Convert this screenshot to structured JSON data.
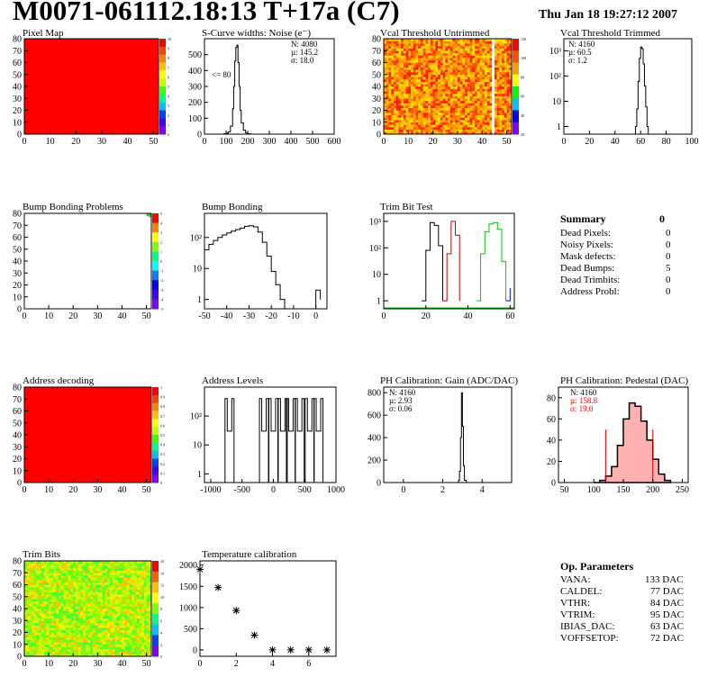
{
  "header": {
    "title": "M0071-061112.18:13 T+17a (C7)",
    "date": "Thu Jan 18 19:27:12 2007"
  },
  "panels": {
    "pixel_map": {
      "title": "Pixel Map",
      "palette_ticks": [
        "10",
        "9",
        "8",
        "7",
        "6",
        "5",
        "4",
        "3",
        "2",
        "1",
        "0"
      ]
    },
    "scurve": {
      "title": "S-Curve widths: Noise (e⁻)",
      "stats": [
        "N: 4080",
        "µ: 145.2",
        "σ: 18.0"
      ],
      "annotation": "<= 80"
    },
    "vcal_untrimmed": {
      "title": "Vcal Threshold Untrimmed",
      "palette_ticks": [
        "120",
        "100",
        "80",
        "60",
        "40",
        "20"
      ]
    },
    "vcal_trimmed": {
      "title": "Vcal Threshold Trimmed",
      "stats": [
        "N: 4160",
        "µ: 60.5",
        "σ:  1.2"
      ]
    },
    "bump_problems": {
      "title": "Bump Bonding Problems",
      "palette_ticks": [
        "5",
        "4",
        "3",
        "2",
        "1",
        "0",
        "-1",
        "-2",
        "-3",
        "-4",
        "-5"
      ]
    },
    "bump_bonding": {
      "title": "Bump Bonding"
    },
    "trim_bit_test": {
      "title": "Trim Bit Test"
    },
    "address_decoding": {
      "title": "Address decoding",
      "palette_ticks": [
        "1",
        "0.9",
        "0.8",
        "0.7",
        "0.6",
        "0.5",
        "0.4",
        "0.3",
        "0.2",
        "0.1",
        "0"
      ]
    },
    "address_levels": {
      "title": "Address Levels"
    },
    "ph_gain": {
      "title": "PH Calibration: Gain (ADC/DAC)",
      "stats": [
        "N: 4160",
        "µ: 2.93",
        "σ: 0.06"
      ]
    },
    "ph_pedestal": {
      "title": "PH Calibration: Pedestal (DAC)",
      "stats": [
        "N: 4160",
        "µ: 158.8",
        "σ: 19.0"
      ],
      "stat_colors": [
        "#000000",
        "#ff0000",
        "#ff0000"
      ]
    },
    "trim_bits": {
      "title": "Trim Bits",
      "palette_ticks": [
        "16",
        "14",
        "12",
        "10",
        "8",
        "6",
        "4",
        "2",
        "0"
      ]
    },
    "temperature": {
      "title": "Temperature calibration"
    }
  },
  "summary": {
    "title": "Summary",
    "total": "0",
    "rows": [
      {
        "label": "Dead Pixels:",
        "value": "0"
      },
      {
        "label": "Noisy Pixels:",
        "value": "0"
      },
      {
        "label": "Mask defects:",
        "value": "0"
      },
      {
        "label": "Dead Bumps:",
        "value": "5"
      },
      {
        "label": "Dead Trimbits:",
        "value": "0"
      },
      {
        "label": "Address Probl:",
        "value": "0"
      }
    ]
  },
  "op_params": {
    "title": "Op. Parameters",
    "rows": [
      {
        "label": "VANA:",
        "value": "133 DAC"
      },
      {
        "label": "CALDEL:",
        "value": "77 DAC"
      },
      {
        "label": "VTHR:",
        "value": "84 DAC"
      },
      {
        "label": "VTRIM:",
        "value": "95 DAC"
      },
      {
        "label": "IBIAS_DAC:",
        "value": "63 DAC"
      },
      {
        "label": "VOFFSETOP:",
        "value": "72 DAC"
      }
    ]
  },
  "chart_data": [
    {
      "id": "pixel_map",
      "type": "heatmap",
      "title": "Pixel Map",
      "x_ticks": [
        0,
        10,
        20,
        30,
        40,
        50
      ],
      "y_ticks": [
        0,
        10,
        20,
        30,
        40,
        50,
        60,
        70,
        80
      ],
      "xlim": [
        0,
        52
      ],
      "ylim": [
        0,
        80
      ],
      "fill": "uniform red",
      "colors": {
        "fill": "#ff0000"
      }
    },
    {
      "id": "scurve",
      "type": "line",
      "title": "S-Curve widths: Noise (e⁻)",
      "x_ticks": [
        0,
        100,
        200,
        300,
        400,
        500,
        600
      ],
      "y_ticks": [
        0,
        100,
        200,
        300,
        400,
        500
      ],
      "xlim": [
        0,
        600
      ],
      "ylim": [
        0,
        600
      ],
      "x": [
        80,
        90,
        100,
        110,
        120,
        130,
        135,
        140,
        145,
        150,
        155,
        160,
        165,
        170,
        180,
        190,
        200,
        210,
        220
      ],
      "y": [
        0,
        2,
        6,
        15,
        50,
        160,
        300,
        460,
        545,
        560,
        450,
        300,
        150,
        70,
        25,
        8,
        3,
        1,
        0
      ]
    },
    {
      "id": "vcal_untrimmed",
      "type": "heatmap",
      "title": "Vcal Threshold Untrimmed",
      "x_ticks": [
        0,
        10,
        20,
        30,
        40,
        50
      ],
      "y_ticks": [
        0,
        10,
        20,
        30,
        40,
        50,
        60,
        70,
        80
      ],
      "xlim": [
        0,
        52
      ],
      "ylim": [
        0,
        80
      ],
      "value_range": [
        20,
        120
      ],
      "white_column": 44
    },
    {
      "id": "vcal_trimmed",
      "type": "line",
      "title": "Vcal Threshold Trimmed",
      "y_scale": "log",
      "x_ticks": [
        0,
        20,
        40,
        60,
        80,
        100
      ],
      "y_tick_labels": [
        "1",
        "10",
        "10²",
        "10³"
      ],
      "xlim": [
        0,
        100
      ],
      "ylim": [
        0.5,
        3000
      ],
      "x": [
        55,
        56,
        57,
        58,
        59,
        60,
        61,
        62,
        63,
        64,
        65,
        66
      ],
      "y": [
        0.5,
        1,
        5,
        60,
        500,
        1400,
        1200,
        300,
        40,
        6,
        1,
        0.5
      ]
    },
    {
      "id": "bump_problems",
      "type": "heatmap",
      "title": "Bump Bonding Problems",
      "x_ticks": [
        0,
        10,
        20,
        30,
        40,
        50
      ],
      "y_ticks": [
        0,
        10,
        20,
        30,
        40,
        50,
        60,
        70,
        80
      ],
      "xlim": [
        0,
        52
      ],
      "ylim": [
        0,
        80
      ],
      "marked_pixels": [
        [
          51,
          79
        ],
        [
          51,
          78
        ],
        [
          50,
          79
        ],
        [
          50,
          78
        ],
        [
          51,
          77
        ]
      ]
    },
    {
      "id": "bump_bonding",
      "type": "line",
      "title": "Bump Bonding",
      "y_scale": "log",
      "x_ticks": [
        -50,
        -40,
        -30,
        -20,
        -10,
        0
      ],
      "y_tick_labels": [
        "1",
        "10",
        "10²"
      ],
      "xlim": [
        -50,
        5
      ],
      "ylim": [
        0.5,
        600
      ],
      "x": [
        -50,
        -48,
        -46,
        -44,
        -42,
        -40,
        -38,
        -36,
        -34,
        -32,
        -30,
        -28,
        -26,
        -24,
        -22,
        -20,
        -18,
        -16,
        -14,
        -2,
        0,
        2
      ],
      "y": [
        40,
        60,
        80,
        100,
        120,
        140,
        160,
        180,
        200,
        230,
        240,
        220,
        150,
        70,
        25,
        8,
        3,
        1,
        0.5,
        0.5,
        2,
        1
      ]
    },
    {
      "id": "trim_bit_test",
      "type": "line",
      "title": "Trim Bit Test",
      "y_scale": "log",
      "x_ticks": [
        0,
        20,
        40,
        60
      ],
      "y_tick_labels": [
        "1",
        "10",
        "10²",
        "10³"
      ],
      "xlim": [
        0,
        62
      ],
      "ylim": [
        0.5,
        2000
      ],
      "series": [
        {
          "color": "#000000",
          "x": [
            18,
            20,
            22,
            24,
            26,
            28
          ],
          "y": [
            1,
            80,
            900,
            700,
            120,
            1
          ]
        },
        {
          "color": "#cc0000",
          "x": [
            28,
            30,
            32,
            34,
            36
          ],
          "y": [
            1,
            60,
            1000,
            300,
            1
          ]
        },
        {
          "color": "#00cc00",
          "x": [
            44,
            46,
            48,
            50,
            52,
            54,
            56,
            58
          ],
          "y": [
            1,
            60,
            400,
            800,
            900,
            500,
            30,
            1
          ]
        },
        {
          "color": "#0000cc",
          "x": [
            58,
            60
          ],
          "y": [
            1,
            3
          ]
        }
      ]
    },
    {
      "id": "address_decoding",
      "type": "heatmap",
      "title": "Address decoding",
      "x_ticks": [
        0,
        10,
        20,
        30,
        40,
        50
      ],
      "y_ticks": [
        0,
        10,
        20,
        30,
        40,
        50,
        60,
        70,
        80
      ],
      "xlim": [
        0,
        52
      ],
      "ylim": [
        0,
        80
      ],
      "fill": "uniform red"
    },
    {
      "id": "address_levels",
      "type": "bar",
      "title": "Address Levels",
      "y_scale": "log",
      "x_ticks": [
        -1000,
        -500,
        0,
        500,
        1000
      ],
      "y_tick_labels": [
        "1",
        "10",
        "10²"
      ],
      "xlim": [
        -1100,
        1000
      ],
      "ylim": [
        0.5,
        1000
      ],
      "peaks": [
        -700,
        -150,
        0,
        150,
        280,
        420,
        580,
        720
      ],
      "peak_value": 400
    },
    {
      "id": "ph_gain",
      "type": "line",
      "title": "PH Calibration: Gain (ADC/DAC)",
      "x_ticks": [
        0,
        2,
        4
      ],
      "y_ticks": [
        0,
        200,
        400,
        600,
        800
      ],
      "xlim": [
        -1,
        5.5
      ],
      "ylim": [
        0,
        850
      ],
      "x": [
        2.7,
        2.8,
        2.85,
        2.9,
        2.95,
        3.0,
        3.05,
        3.1,
        3.2
      ],
      "y": [
        0,
        20,
        100,
        400,
        800,
        500,
        150,
        20,
        0
      ]
    },
    {
      "id": "ph_pedestal",
      "type": "area",
      "title": "PH Calibration: Pedestal (DAC)",
      "x_ticks": [
        50,
        100,
        150,
        200,
        250
      ],
      "y_ticks": [
        0,
        20,
        40,
        60,
        80
      ],
      "xlim": [
        40,
        260
      ],
      "ylim": [
        0,
        90
      ],
      "x": [
        100,
        110,
        120,
        130,
        140,
        150,
        160,
        170,
        180,
        190,
        200,
        210,
        220,
        230
      ],
      "y": [
        0,
        2,
        6,
        15,
        35,
        60,
        75,
        72,
        58,
        40,
        22,
        8,
        2,
        0
      ]
    },
    {
      "id": "trim_bits",
      "type": "heatmap",
      "title": "Trim Bits",
      "x_ticks": [
        0,
        10,
        20,
        30,
        40,
        50
      ],
      "y_ticks": [
        0,
        10,
        20,
        30,
        40,
        50,
        60,
        70,
        80
      ],
      "xlim": [
        0,
        52
      ],
      "ylim": [
        0,
        80
      ],
      "value_range": [
        0,
        16
      ]
    },
    {
      "id": "temperature",
      "type": "scatter",
      "title": "Temperature calibration",
      "x_ticks": [
        0,
        2,
        4,
        6
      ],
      "y_ticks": [
        0,
        500,
        1000,
        1500,
        2000
      ],
      "xlim": [
        0,
        7.5
      ],
      "ylim": [
        -150,
        2100
      ],
      "x": [
        0,
        1,
        2,
        3,
        4,
        5,
        6,
        7
      ],
      "y": [
        1900,
        1470,
        930,
        350,
        0,
        0,
        0,
        0
      ]
    }
  ]
}
